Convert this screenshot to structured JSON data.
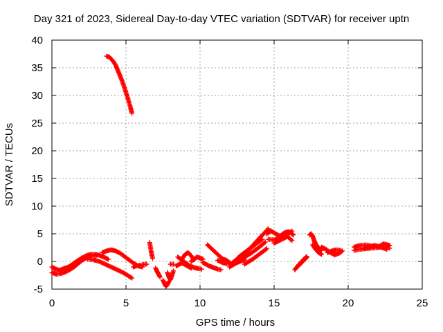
{
  "chart_data": {
    "type": "scatter",
    "title": "Day 321 of 2023, Sidereal Day-to-day VTEC variation (SDTVAR) for receiver uptn",
    "xlabel": "GPS time / hours",
    "ylabel": "SDTVAR / TECUs",
    "xlim": [
      0,
      25
    ],
    "ylim": [
      -5,
      40
    ],
    "x_ticks": [
      0,
      5,
      10,
      15,
      20,
      25
    ],
    "y_ticks": [
      -5,
      0,
      5,
      10,
      15,
      20,
      25,
      30,
      35,
      40
    ],
    "grid": true,
    "marker": "+",
    "marker_color": "#ff0000",
    "series": [
      {
        "name": "SDTVAR",
        "segments": [
          {
            "t": [
              3.7,
              3.9,
              4.1,
              4.3,
              4.5,
              4.7,
              4.9,
              5.1,
              5.3,
              5.4
            ],
            "v": [
              37.1,
              36.9,
              36.3,
              35.5,
              34.2,
              32.9,
              31.4,
              29.7,
              27.9,
              26.8
            ]
          },
          {
            "t": [
              0.0,
              0.2,
              0.5,
              0.8,
              1.1,
              1.4,
              1.7,
              2.0,
              2.3,
              2.6,
              2.9,
              3.2,
              3.5,
              3.8
            ],
            "v": [
              -1.0,
              -1.3,
              -1.6,
              -1.3,
              -1.0,
              -0.5,
              0.1,
              0.6,
              1.0,
              1.3,
              1.3,
              1.1,
              0.8,
              0.4
            ]
          },
          {
            "t": [
              0.0,
              0.3,
              0.6,
              0.9,
              1.2,
              1.5,
              1.8,
              2.1,
              2.4,
              2.7,
              3.0
            ],
            "v": [
              -2.0,
              -2.3,
              -2.2,
              -1.9,
              -1.5,
              -1.0,
              -0.3,
              0.3,
              0.8,
              1.0,
              1.1
            ]
          },
          {
            "t": [
              2.4,
              2.8,
              3.2,
              3.6,
              4.0,
              4.4,
              4.8,
              5.1,
              5.4
            ],
            "v": [
              0.4,
              0.3,
              0.0,
              -0.5,
              -1.0,
              -1.5,
              -2.0,
              -2.5,
              -3.0
            ]
          },
          {
            "t": [
              3.4,
              3.7,
              4.0,
              4.3,
              4.6,
              4.9,
              5.2,
              5.5,
              5.8,
              6.1
            ],
            "v": [
              1.6,
              1.9,
              2.1,
              1.9,
              1.5,
              0.9,
              0.3,
              -0.3,
              -0.8,
              -1.0
            ]
          },
          {
            "t": [
              5.5,
              5.7,
              5.9,
              6.1,
              6.3,
              6.4
            ],
            "v": [
              -1.0,
              -0.8,
              -0.7,
              -0.6,
              -0.5,
              -0.5
            ]
          },
          {
            "t": [
              6.6,
              6.65,
              6.7,
              6.75,
              6.8
            ],
            "v": [
              3.4,
              2.6,
              1.8,
              1.1,
              0.6
            ]
          },
          {
            "t": [
              7.0,
              7.1,
              7.2,
              7.3
            ],
            "v": [
              -1.2,
              -1.8,
              -2.3,
              -2.8
            ]
          },
          {
            "t": [
              7.5,
              7.6,
              7.7,
              7.8,
              7.9
            ],
            "v": [
              -3.4,
              -4.0,
              -4.5,
              -4.2,
              -3.6
            ]
          },
          {
            "t": [
              7.8,
              7.9,
              8.0,
              8.1,
              8.2
            ],
            "v": [
              -2.0,
              -2.8,
              -3.3,
              -2.6,
              -1.7
            ]
          },
          {
            "t": [
              8.0,
              8.2
            ],
            "v": [
              -0.5,
              -0.5
            ]
          },
          {
            "t": [
              8.4,
              8.6,
              8.8,
              9.0,
              9.2,
              9.4
            ],
            "v": [
              -0.8,
              -0.5,
              -0.3,
              -0.6,
              -0.9,
              -1.2
            ]
          },
          {
            "t": [
              8.5,
              8.7,
              9.0,
              9.3,
              9.6,
              9.9,
              10.1
            ],
            "v": [
              0.8,
              0.4,
              -0.2,
              -0.8,
              -1.1,
              -1.3,
              -1.4
            ]
          },
          {
            "t": [
              8.8,
              9.0,
              9.2,
              9.4,
              9.6
            ],
            "v": [
              0.5,
              1.3,
              1.6,
              1.0,
              0.3
            ]
          },
          {
            "t": [
              9.4,
              9.6,
              9.8,
              10.0,
              10.2
            ],
            "v": [
              0.0,
              0.4,
              0.8,
              0.6,
              0.4
            ]
          },
          {
            "t": [
              10.2,
              10.4,
              10.6,
              10.8,
              11.0,
              11.2,
              11.4
            ],
            "v": [
              -0.2,
              -0.5,
              -0.8,
              -1.0,
              -1.2,
              -1.4,
              -1.5
            ]
          },
          {
            "t": [
              10.5,
              10.7,
              10.9,
              11.1,
              11.3,
              11.5
            ],
            "v": [
              3.0,
              2.5,
              2.0,
              1.5,
              1.0,
              0.5
            ]
          },
          {
            "t": [
              11.2,
              11.5,
              11.8,
              12.1,
              12.4,
              12.7,
              13.0
            ],
            "v": [
              0.2,
              -0.2,
              -0.4,
              -0.5,
              -0.3,
              0.0,
              0.3
            ]
          },
          {
            "t": [
              11.5,
              11.8,
              12.1,
              12.4,
              12.7,
              13.0,
              13.3,
              13.6,
              13.9,
              14.2
            ],
            "v": [
              0.5,
              0.2,
              -0.4,
              0.2,
              1.0,
              1.6,
              2.2,
              2.8,
              3.4,
              4.0
            ]
          },
          {
            "t": [
              12.0,
              12.3,
              12.6,
              12.9,
              13.2,
              13.5,
              13.8,
              14.1,
              14.4
            ],
            "v": [
              -1.0,
              -0.5,
              0.0,
              0.5,
              1.1,
              1.6,
              2.2,
              2.8,
              3.5
            ]
          },
          {
            "t": [
              12.5,
              12.8,
              13.1,
              13.4,
              13.7,
              14.0,
              14.3,
              14.6
            ],
            "v": [
              0.3,
              0.9,
              1.6,
              2.4,
              3.3,
              4.2,
              5.0,
              5.9
            ]
          },
          {
            "t": [
              13.0,
              13.3,
              13.6,
              13.9,
              14.2,
              14.5
            ],
            "v": [
              -0.5,
              0.0,
              0.5,
              1.1,
              1.7,
              2.3
            ]
          },
          {
            "t": [
              14.5,
              14.8,
              15.1,
              15.4,
              15.7,
              16.0,
              16.3
            ],
            "v": [
              5.0,
              5.5,
              5.0,
              4.6,
              5.2,
              5.4,
              4.8
            ]
          },
          {
            "t": [
              14.6,
              15.0,
              15.4,
              15.8,
              16.2
            ],
            "v": [
              4.0,
              3.9,
              4.2,
              4.6,
              5.5
            ]
          },
          {
            "t": [
              15.0,
              15.3,
              15.6,
              15.9,
              16.2
            ],
            "v": [
              3.3,
              3.7,
              4.1,
              4.5,
              3.8
            ]
          },
          {
            "t": [
              16.4,
              16.6,
              16.8,
              17.0,
              17.2
            ],
            "v": [
              -1.5,
              -0.8,
              -0.2,
              0.4,
              0.9
            ]
          },
          {
            "t": [
              16.6,
              16.8,
              17.0,
              17.2
            ],
            "v": [
              -0.9,
              -0.4,
              0.2,
              0.7
            ]
          },
          {
            "t": [
              17.4,
              17.5,
              17.6,
              17.7,
              17.8,
              17.9,
              18.0,
              18.2
            ],
            "v": [
              4.8,
              5.0,
              4.6,
              3.8,
              3.2,
              2.8,
              2.4,
              2.0
            ]
          },
          {
            "t": [
              17.6,
              17.8,
              18.0,
              18.2
            ],
            "v": [
              3.0,
              2.2,
              1.6,
              1.3
            ]
          },
          {
            "t": [
              18.2,
              18.5,
              18.8,
              19.1,
              19.4,
              19.6
            ],
            "v": [
              2.6,
              2.2,
              1.6,
              1.2,
              1.5,
              1.9
            ]
          },
          {
            "t": [
              18.6,
              18.9,
              19.2,
              19.5
            ],
            "v": [
              1.6,
              1.9,
              2.1,
              2.0
            ]
          },
          {
            "t": [
              20.4,
              20.8,
              21.2,
              21.6,
              22.0,
              22.4,
              22.8
            ],
            "v": [
              2.0,
              2.2,
              2.3,
              2.4,
              2.5,
              2.6,
              2.4
            ]
          },
          {
            "t": [
              20.4,
              20.8,
              21.2,
              21.6,
              22.0,
              22.4,
              22.8
            ],
            "v": [
              2.6,
              2.9,
              3.0,
              2.8,
              2.6,
              3.2,
              2.9
            ]
          },
          {
            "t": [
              21.0,
              21.4,
              21.8,
              22.2,
              22.6
            ],
            "v": [
              2.3,
              2.6,
              2.9,
              2.6,
              2.2
            ]
          }
        ]
      }
    ]
  }
}
